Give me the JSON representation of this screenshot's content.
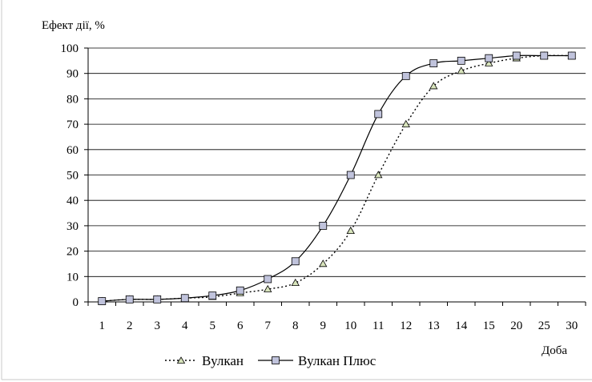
{
  "chart_data": {
    "type": "line",
    "ylabel": "Ефект дії, %",
    "xlabel": "Доба",
    "categories": [
      "1",
      "2",
      "3",
      "4",
      "5",
      "6",
      "7",
      "8",
      "9",
      "10",
      "11",
      "12",
      "13",
      "14",
      "15",
      "20",
      "25",
      "30"
    ],
    "y_ticks": [
      "0",
      "10",
      "20",
      "30",
      "40",
      "50",
      "60",
      "70",
      "80",
      "90",
      "100"
    ],
    "ylim": [
      0,
      100
    ],
    "grid": "horizontal",
    "legend_position": "bottom",
    "series": [
      {
        "name": "Вулкан",
        "marker": "triangle",
        "line_style": "dotted",
        "marker_color": "#d8e4bc",
        "values": [
          0.3,
          1,
          1,
          1.5,
          2,
          3.5,
          5,
          7.5,
          15,
          28,
          50,
          70,
          85,
          91,
          94,
          96,
          97,
          97
        ]
      },
      {
        "name": "Вулкан Плюс",
        "marker": "square",
        "line_style": "solid",
        "marker_color": "#c0c3dc",
        "values": [
          0.3,
          1,
          1,
          1.5,
          2.5,
          4.5,
          9,
          16,
          30,
          50,
          74,
          89,
          94,
          95,
          96,
          97,
          97,
          97
        ]
      }
    ]
  }
}
